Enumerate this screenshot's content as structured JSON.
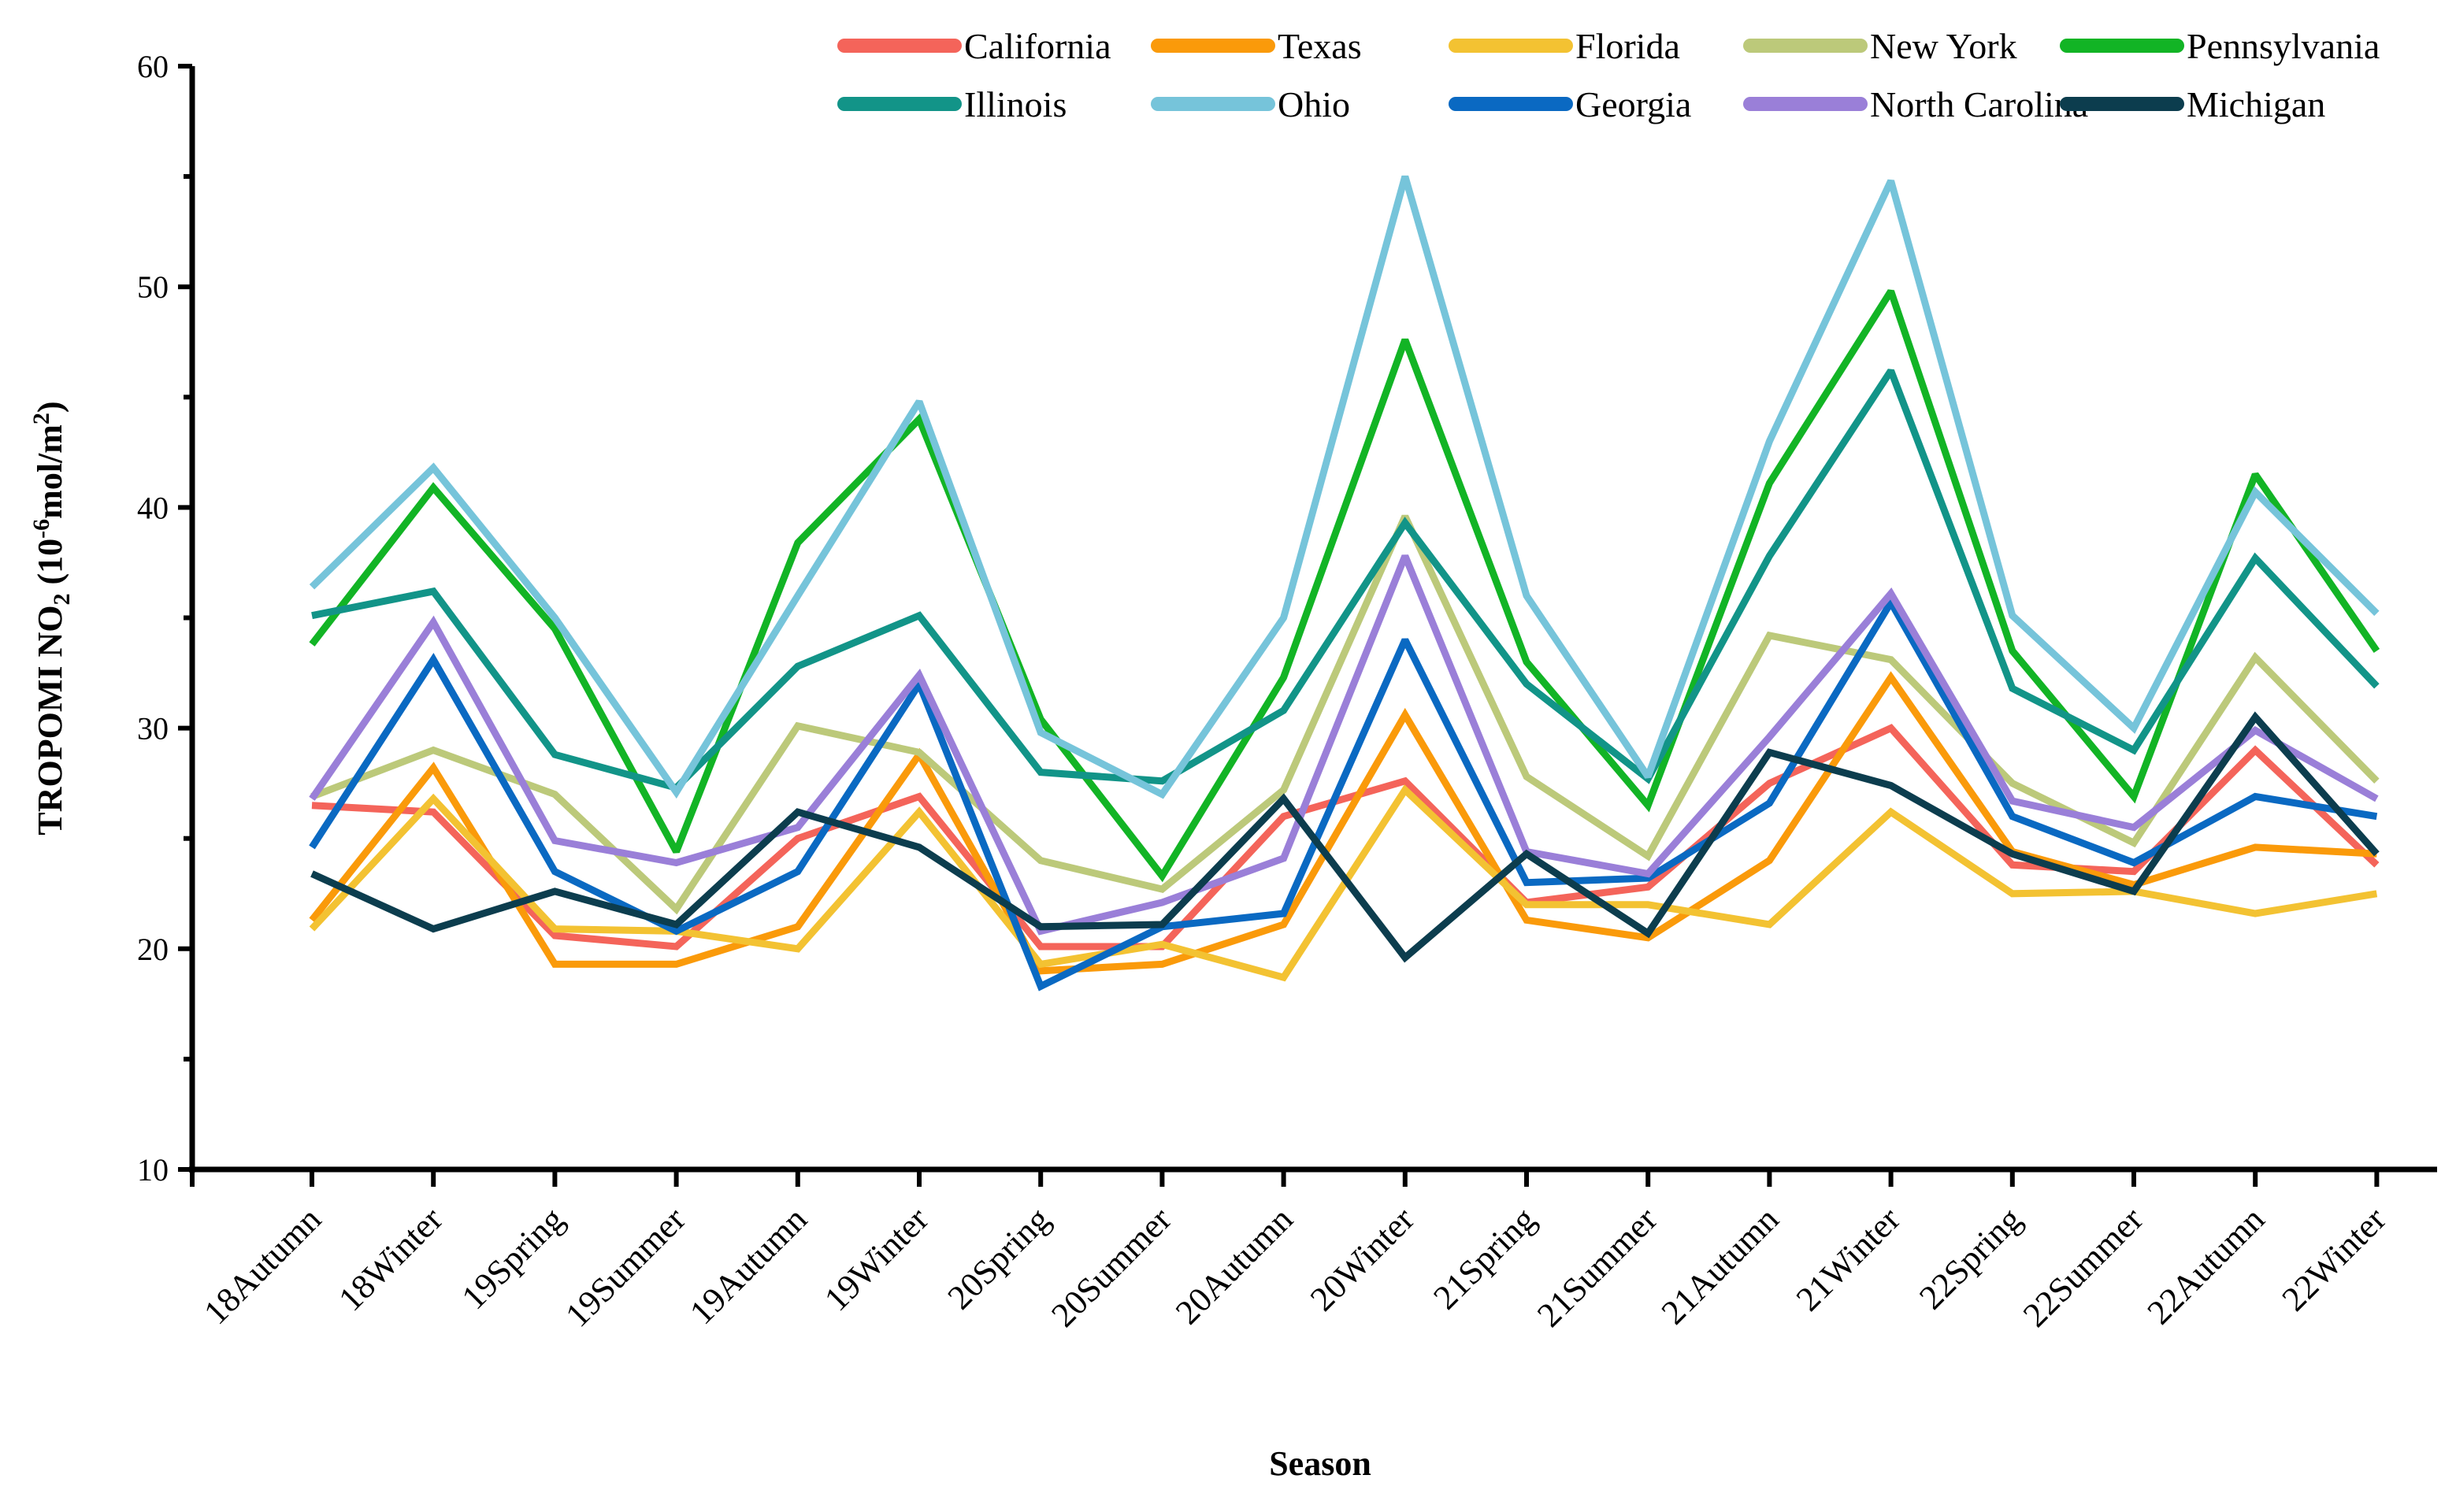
{
  "chart_data": {
    "type": "line",
    "title": "",
    "xlabel": "Season",
    "ylabel": {
      "prefix": "TROPOMI NO",
      "sub": "2",
      "mid": " (10",
      "sup": "-6",
      "unit": "mol/m",
      "sup2": "2",
      "suffix": ")"
    },
    "ylim": [
      10,
      60
    ],
    "yticks": [
      10,
      20,
      30,
      40,
      50,
      60
    ],
    "grid": false,
    "legend_position": "top-right",
    "categories": [
      "18Autumn",
      "18Winter",
      "19Spring",
      "19Summer",
      "19Autumn",
      "19Winter",
      "20Spring",
      "20Summer",
      "20Autumn",
      "20Winter",
      "21Spring",
      "21Summer",
      "21Autumn",
      "21Winter",
      "22Spring",
      "22Summer",
      "22Autumn",
      "22Winter"
    ],
    "series": [
      {
        "name": "California",
        "color": "#f4645a",
        "values": [
          26.5,
          26.2,
          20.6,
          20.1,
          25.0,
          26.9,
          20.1,
          20.1,
          26.0,
          27.6,
          22.1,
          22.8,
          27.5,
          30.0,
          23.8,
          23.5,
          29.0,
          23.8
        ]
      },
      {
        "name": "Texas",
        "color": "#fa9a0a",
        "values": [
          21.3,
          28.2,
          19.3,
          19.3,
          21.0,
          28.8,
          19.0,
          19.3,
          21.1,
          30.6,
          21.3,
          20.5,
          24.0,
          32.3,
          24.4,
          22.9,
          24.6,
          24.3
        ]
      },
      {
        "name": "Florida",
        "color": "#f3c232",
        "values": [
          20.9,
          26.8,
          20.9,
          20.8,
          20.0,
          26.2,
          19.3,
          20.2,
          18.7,
          27.2,
          22.0,
          22.0,
          21.1,
          26.2,
          22.5,
          22.6,
          21.6,
          22.5
        ]
      },
      {
        "name": "New York",
        "color": "#bcc97a",
        "values": [
          26.9,
          29.0,
          27.0,
          21.8,
          30.1,
          28.9,
          24.0,
          22.7,
          27.2,
          39.6,
          27.8,
          24.2,
          34.2,
          33.1,
          27.5,
          24.8,
          33.2,
          27.6
        ]
      },
      {
        "name": "Pennsylvania",
        "color": "#12b425",
        "values": [
          33.8,
          40.9,
          34.5,
          24.4,
          38.4,
          44.0,
          30.4,
          23.3,
          32.3,
          47.6,
          33.0,
          26.5,
          41.1,
          49.8,
          33.5,
          26.9,
          41.5,
          33.5
        ]
      },
      {
        "name": "Illinois",
        "color": "#129488",
        "values": [
          35.1,
          36.2,
          28.8,
          27.3,
          32.8,
          35.1,
          28.0,
          27.6,
          30.8,
          39.3,
          32.0,
          27.7,
          37.8,
          46.2,
          31.8,
          29.0,
          37.7,
          31.9
        ]
      },
      {
        "name": "Ohio",
        "color": "#76c4da",
        "values": [
          36.4,
          41.8,
          35.0,
          27.1,
          36.0,
          44.8,
          29.8,
          27.0,
          35.0,
          55.0,
          36.0,
          27.8,
          43.0,
          54.8,
          35.1,
          30.0,
          40.7,
          35.2
        ]
      },
      {
        "name": "Georgia",
        "color": "#0a69c2",
        "values": [
          24.6,
          33.1,
          23.5,
          20.8,
          23.5,
          32.0,
          18.3,
          21.0,
          21.6,
          34.0,
          23.0,
          23.2,
          26.6,
          35.7,
          26.0,
          23.9,
          26.9,
          26.0
        ]
      },
      {
        "name": "North Carolina",
        "color": "#9a7fd8",
        "values": [
          26.8,
          34.8,
          24.9,
          23.9,
          25.5,
          32.4,
          20.8,
          22.1,
          24.1,
          37.8,
          24.4,
          23.4,
          29.6,
          36.1,
          26.7,
          25.5,
          29.9,
          26.8
        ]
      },
      {
        "name": "Michigan",
        "color": "#0c3d4e",
        "values": [
          23.4,
          20.9,
          22.6,
          21.1,
          26.2,
          24.6,
          21.0,
          21.1,
          26.8,
          19.6,
          24.3,
          20.7,
          28.9,
          27.4,
          24.3,
          22.6,
          30.5,
          24.3
        ]
      }
    ]
  }
}
